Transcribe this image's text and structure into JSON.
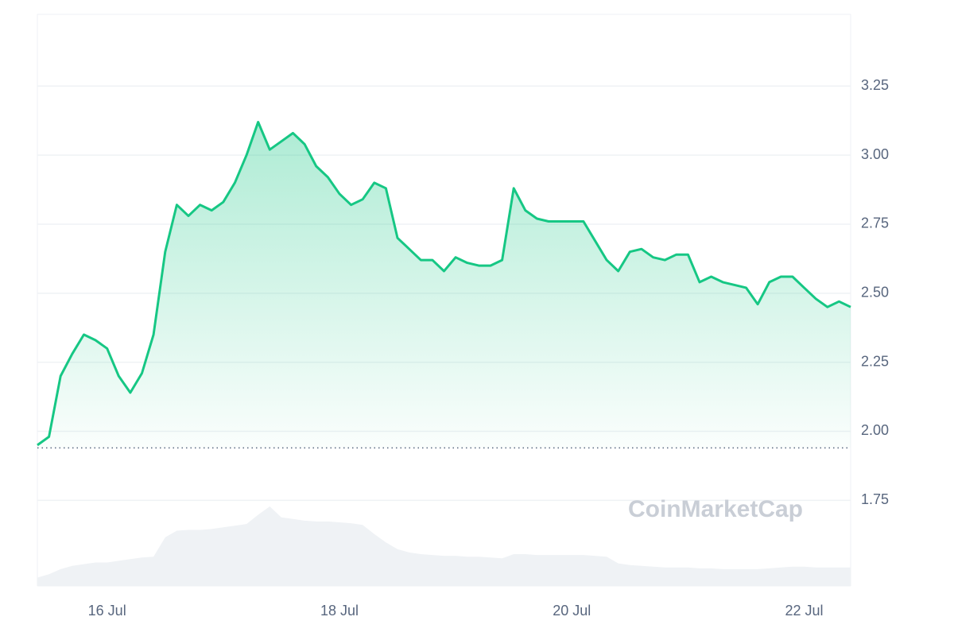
{
  "chart_data": {
    "type": "line",
    "color": "#16c784",
    "watermark": "CoinMarketCap",
    "grid": true,
    "ylim": [
      1.44,
      3.51
    ],
    "yticks": [
      1.75,
      {
        "value": 2,
        "label": "2.00"
      },
      2.25,
      {
        "value": 2.5,
        "label": "2.50"
      },
      2.75,
      {
        "value": 3,
        "label": "3.00"
      },
      3.25
    ],
    "baseline": 1.94,
    "categories": [
      null,
      null,
      null,
      null,
      null,
      null,
      "16 Jul",
      null,
      null,
      null,
      null,
      null,
      null,
      null,
      null,
      null,
      null,
      null,
      null,
      null,
      null,
      null,
      null,
      null,
      null,
      null,
      "18 Jul",
      null,
      null,
      null,
      null,
      null,
      null,
      null,
      null,
      null,
      null,
      null,
      null,
      null,
      null,
      null,
      null,
      null,
      null,
      null,
      "20 Jul",
      null,
      null,
      null,
      null,
      null,
      null,
      null,
      null,
      null,
      null,
      null,
      null,
      null,
      null,
      null,
      null,
      null,
      null,
      null,
      "22 Jul",
      null,
      null,
      null,
      null
    ],
    "values": [
      1.95,
      1.98,
      2.2,
      2.28,
      2.35,
      2.33,
      2.3,
      2.2,
      2.14,
      2.21,
      2.35,
      2.65,
      2.82,
      2.78,
      2.82,
      2.8,
      2.83,
      2.9,
      3.0,
      3.12,
      3.02,
      3.05,
      3.08,
      3.04,
      2.96,
      2.92,
      2.86,
      2.82,
      2.84,
      2.9,
      2.88,
      2.7,
      2.66,
      2.62,
      2.62,
      2.58,
      2.63,
      2.61,
      2.6,
      2.6,
      2.62,
      2.88,
      2.8,
      2.77,
      2.76,
      2.76,
      2.76,
      2.76,
      2.69,
      2.62,
      2.58,
      2.65,
      2.66,
      2.63,
      2.62,
      2.64,
      2.64,
      2.54,
      2.56,
      2.54,
      2.53,
      2.52,
      2.46,
      2.54,
      2.56,
      2.56,
      2.52,
      2.48,
      2.45,
      2.47,
      2.45
    ],
    "volume": [
      10,
      14,
      20,
      24,
      26,
      28,
      28,
      30,
      32,
      34,
      35,
      58,
      66,
      67,
      67,
      68,
      70,
      72,
      74,
      85,
      95,
      82,
      80,
      78,
      77,
      77,
      76,
      75,
      73,
      62,
      52,
      44,
      40,
      38,
      37,
      36,
      36,
      35,
      35,
      34,
      33,
      38,
      38,
      37,
      37,
      37,
      37,
      37,
      36,
      35,
      27,
      25,
      24,
      23,
      22,
      22,
      22,
      21,
      21,
      20,
      20,
      20,
      20,
      21,
      22,
      23,
      23,
      22,
      22,
      22,
      22
    ]
  }
}
